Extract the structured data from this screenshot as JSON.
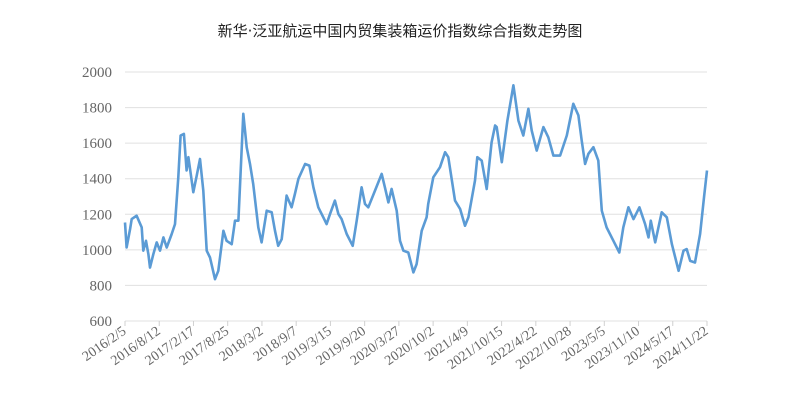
{
  "chart_data": {
    "type": "line",
    "title": "新华·泛亚航运中国内贸集装箱运价指数综合指数走势图",
    "xlabel": "",
    "ylabel": "",
    "ylim": [
      600,
      2000
    ],
    "yticks": [
      "600",
      "800",
      "1000",
      "1200",
      "1400",
      "1600",
      "1800",
      "2000"
    ],
    "xticks": [
      "2016/2/5",
      "2016/8/12",
      "2017/2/17",
      "2017/8/25",
      "2018/3/2",
      "2018/9/7",
      "2019/3/15",
      "2019/9/20",
      "2020/3/27",
      "2020/10/2",
      "2021/4/9",
      "2021/10/15",
      "2022/4/22",
      "2022/10/28",
      "2023/5/5",
      "2023/11/10",
      "2024/5/17",
      "2024/11/22"
    ],
    "x_range": [
      "2016-02-05",
      "2024-11-22"
    ],
    "grid": true,
    "legend": "none",
    "color": "#5b9bd5",
    "series": [
      {
        "x": [
          "2016-02-05",
          "2016-02-14",
          "2016-03-04",
          "2016-03-13",
          "2016-04-09",
          "2016-05-07",
          "2016-05-16",
          "2016-05-31",
          "2016-06-13",
          "2016-06-22",
          "2016-07-10",
          "2016-07-29",
          "2016-08-16",
          "2016-09-04",
          "2016-09-22",
          "2016-10-20",
          "2016-11-07",
          "2016-11-25",
          "2016-12-08",
          "2016-12-26",
          "2017-01-10",
          "2017-01-20",
          "2017-02-16",
          "2017-03-07",
          "2017-03-25",
          "2017-04-12",
          "2017-05-01",
          "2017-05-19",
          "2017-06-16",
          "2017-07-04",
          "2017-08-01",
          "2017-08-19",
          "2017-09-16",
          "2017-10-04",
          "2017-10-23",
          "2017-11-19",
          "2017-12-08",
          "2017-12-26",
          "2018-01-13",
          "2018-02-10",
          "2018-02-28",
          "2018-03-28",
          "2018-04-25",
          "2018-05-13",
          "2018-05-31",
          "2018-06-19",
          "2018-07-16",
          "2018-08-13",
          "2018-08-31",
          "2018-09-19",
          "2018-10-26",
          "2018-11-19",
          "2018-12-11",
          "2019-01-07",
          "2019-02-04",
          "2019-02-22",
          "2019-03-13",
          "2019-04-09",
          "2019-04-28",
          "2019-05-16",
          "2019-06-13",
          "2019-07-16",
          "2019-08-07",
          "2019-09-03",
          "2019-09-22",
          "2019-10-10",
          "2019-11-16",
          "2019-12-23",
          "2020-01-10",
          "2020-01-29",
          "2020-02-16",
          "2020-03-15",
          "2020-04-02",
          "2020-04-21",
          "2020-05-18",
          "2020-06-15",
          "2020-07-03",
          "2020-07-31",
          "2020-08-27",
          "2020-09-05",
          "2020-10-03",
          "2020-11-09",
          "2020-12-07",
          "2020-12-25",
          "2021-01-31",
          "2021-02-28",
          "2021-03-27",
          "2021-04-15",
          "2021-05-21",
          "2021-06-03",
          "2021-06-27",
          "2021-07-25",
          "2021-08-21",
          "2021-09-09",
          "2021-09-18",
          "2021-10-16",
          "2021-11-16",
          "2021-12-19",
          "2022-01-16",
          "2022-02-12",
          "2022-03-12",
          "2022-03-30",
          "2022-04-27",
          "2022-06-03",
          "2022-06-30",
          "2022-07-28",
          "2022-09-03",
          "2022-10-10",
          "2022-11-15",
          "2022-12-13",
          "2022-12-31",
          "2023-01-19",
          "2023-02-06",
          "2023-03-06",
          "2023-04-02",
          "2023-04-21",
          "2023-05-18",
          "2023-06-24",
          "2023-07-27",
          "2023-08-18",
          "2023-09-15",
          "2023-10-13",
          "2023-11-15",
          "2023-12-16",
          "2024-01-04",
          "2024-01-17",
          "2024-02-10",
          "2024-03-17",
          "2024-04-14",
          "2024-05-12",
          "2024-06-18",
          "2024-07-15",
          "2024-08-02",
          "2024-08-21",
          "2024-09-17",
          "2024-10-15",
          "2024-11-06",
          "2024-11-22"
        ],
        "y": [
          1154,
          1013,
          1117,
          1173,
          1192,
          1126,
          995,
          1051,
          975,
          900,
          975,
          1042,
          995,
          1070,
          1013,
          1089,
          1145,
          1408,
          1643,
          1652,
          1446,
          1521,
          1324,
          1417,
          1511,
          1333,
          995,
          957,
          835,
          882,
          1107,
          1051,
          1032,
          1164,
          1164,
          1765,
          1577,
          1483,
          1371,
          1126,
          1042,
          1220,
          1211,
          1107,
          1023,
          1060,
          1305,
          1239,
          1314,
          1399,
          1483,
          1474,
          1352,
          1239,
          1183,
          1145,
          1201,
          1277,
          1201,
          1173,
          1089,
          1023,
          1164,
          1352,
          1258,
          1239,
          1333,
          1427,
          1352,
          1267,
          1343,
          1220,
          1051,
          995,
          985,
          873,
          920,
          1107,
          1183,
          1258,
          1408,
          1465,
          1549,
          1521,
          1277,
          1230,
          1136,
          1183,
          1390,
          1521,
          1502,
          1342,
          1605,
          1699,
          1690,
          1493,
          1727,
          1925,
          1727,
          1643,
          1793,
          1671,
          1558,
          1690,
          1633,
          1530,
          1530,
          1643,
          1821,
          1756,
          1615,
          1483,
          1540,
          1577,
          1502,
          1220,
          1126,
          1051,
          985,
          1126,
          1239,
          1173,
          1239,
          1145,
          1070,
          1164,
          1042,
          1211,
          1183,
          1032,
          882,
          995,
          1004,
          938,
          929,
          1089,
          1300,
          1446
        ]
      }
    ]
  }
}
